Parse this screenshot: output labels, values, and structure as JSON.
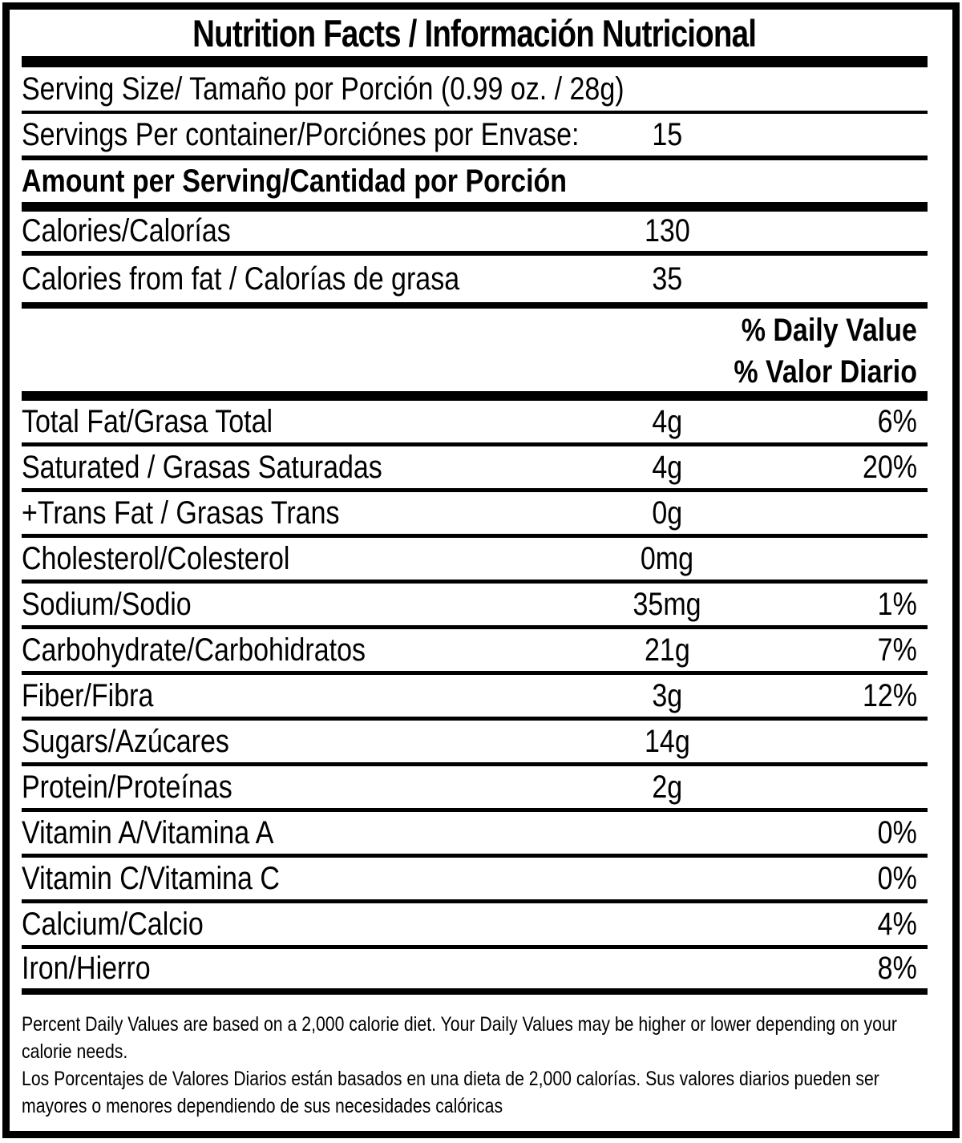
{
  "title": "Nutrition Facts / Información Nutricional",
  "serving": {
    "size_label": "Serving Size/ Tamaño por Porción  (0.99 oz. / 28g)",
    "per_container_label": "Servings Per container/Porciónes por Envase:",
    "per_container_value": "15"
  },
  "amount_per_serving_header": "Amount per Serving/Cantidad por Porción",
  "calories": {
    "label": "Calories/Calorías",
    "value": "130"
  },
  "calories_from_fat": {
    "label": "Calories from fat / Calorías de grasa",
    "value": "35"
  },
  "daily_value_header": {
    "en": "% Daily Value",
    "es": "% Valor Diario"
  },
  "nutrients": [
    {
      "label": "Total Fat/Grasa Total",
      "amount": "4g",
      "dv": "6%"
    },
    {
      "label": "Saturated / Grasas Saturadas",
      "amount": "4g",
      "dv": "20%"
    },
    {
      "label": "+Trans Fat / Grasas Trans",
      "amount": "0g",
      "dv": ""
    },
    {
      "label": "Cholesterol/Colesterol",
      "amount": "0mg",
      "dv": ""
    },
    {
      "label": "Sodium/Sodio",
      "amount": "35mg",
      "dv": "1%"
    },
    {
      "label": "Carbohydrate/Carbohidratos",
      "amount": "21g",
      "dv": "7%"
    },
    {
      "label": "Fiber/Fibra",
      "amount": "3g",
      "dv": "12%"
    },
    {
      "label": "Sugars/Azúcares",
      "amount": "14g",
      "dv": ""
    },
    {
      "label": "Protein/Proteínas",
      "amount": "2g",
      "dv": ""
    },
    {
      "label": "Vitamin A/Vitamina A",
      "amount": "",
      "dv": "0%"
    },
    {
      "label": "Vitamin C/Vitamina C",
      "amount": "",
      "dv": "0%"
    },
    {
      "label": "Calcium/Calcio",
      "amount": "",
      "dv": "4%"
    },
    {
      "label": "Iron/Hierro",
      "amount": "",
      "dv": "8%"
    }
  ],
  "footnotes": {
    "en": "Percent Daily Values are based on a 2,000 calorie diet. Your Daily Values may be higher or lower depending on your calorie needs.",
    "es": "Los Porcentajes de Valores Diarios están basados en una dieta de 2,000 calorías. Sus valores diarios pueden ser mayores o menores dependiendo de sus necesidades calóricas"
  },
  "colors": {
    "text": "#000000",
    "background": "#ffffff",
    "rule": "#000000"
  }
}
